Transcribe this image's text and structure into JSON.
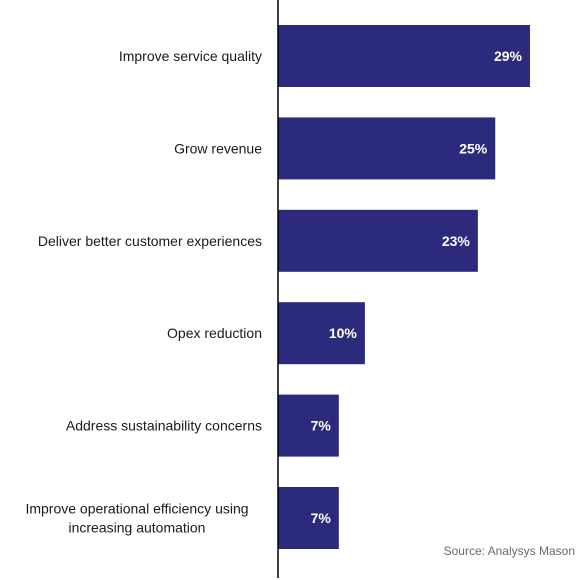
{
  "chart_data": {
    "type": "bar",
    "orientation": "horizontal",
    "categories": [
      [
        "Improve service quality"
      ],
      [
        "Grow revenue"
      ],
      [
        "Deliver better customer experiences"
      ],
      [
        "Opex reduction"
      ],
      [
        "Address sustainability concerns"
      ],
      [
        "Improve operational efficiency using",
        "increasing automation"
      ]
    ],
    "values": [
      29,
      25,
      23,
      10,
      7,
      7
    ],
    "value_labels": [
      "29%",
      "25%",
      "23%",
      "10%",
      "7%",
      "7%"
    ],
    "unit": "%",
    "xlim": [
      0,
      35
    ],
    "grid": false,
    "legend": "none",
    "bar_color": "#2b2a7d",
    "source": "Source: Analysys Mason"
  }
}
